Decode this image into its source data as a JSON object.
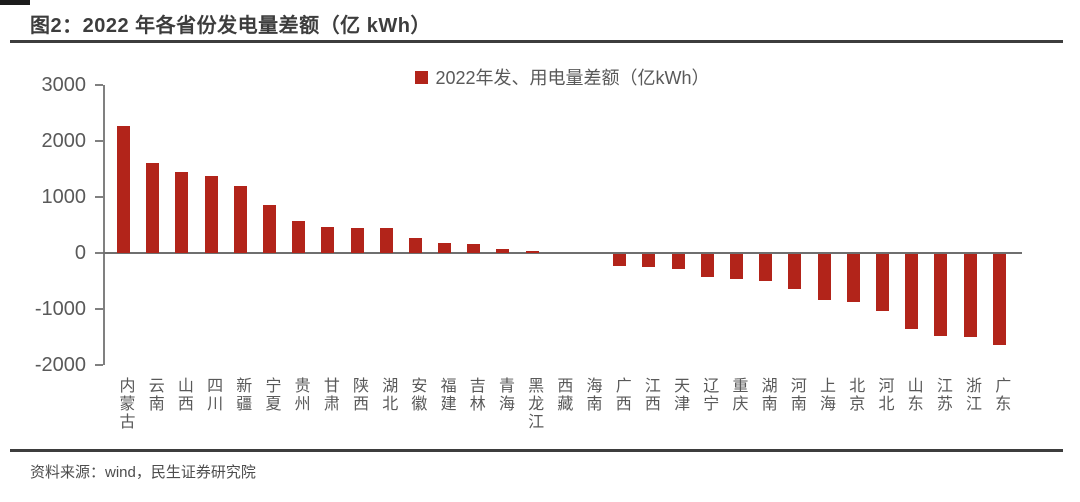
{
  "header": {
    "title": "图2：2022 年各省份发电量差额（亿 kWh）"
  },
  "legend": {
    "label": "2022年发、用电量差额（亿kWh）",
    "marker_color": "#b2241a"
  },
  "footer": {
    "source": "资料来源：wind，民生证券研究院"
  },
  "colors": {
    "bar": "#b2241a",
    "axis": "#808080",
    "zero_line": "#6f6f6f",
    "tick_text": "#595959",
    "title_text": "#3d3d3d",
    "rule": "#3d3d3d"
  },
  "chart_data": {
    "type": "bar",
    "title": "2022 年各省份发电量差额（亿 kWh）",
    "legend_entries": [
      "2022年发、用电量差额（亿kWh）"
    ],
    "legend_position": "top-center",
    "xlabel": "",
    "ylabel": "",
    "ylim": [
      -2000,
      3000
    ],
    "yticks": [
      3000,
      2000,
      1000,
      0,
      -1000,
      -2000
    ],
    "grid": false,
    "categories": [
      "内蒙古",
      "云南",
      "山西",
      "四川",
      "新疆",
      "宁夏",
      "贵州",
      "甘肃",
      "陕西",
      "湖北",
      "安徽",
      "福建",
      "吉林",
      "青海",
      "黑龙江",
      "西藏",
      "海南",
      "广西",
      "江西",
      "天津",
      "辽宁",
      "重庆",
      "湖南",
      "河南",
      "上海",
      "北京",
      "河北",
      "山东",
      "江苏",
      "浙江",
      "广东"
    ],
    "values": [
      2270,
      1600,
      1450,
      1370,
      1190,
      860,
      580,
      460,
      455,
      440,
      260,
      170,
      160,
      70,
      35,
      0,
      0,
      -215,
      -235,
      -265,
      -410,
      -450,
      -480,
      -620,
      -820,
      -850,
      -1010,
      -1340,
      -1470,
      -1490,
      -1630
    ],
    "series_color": "#b2241a"
  }
}
